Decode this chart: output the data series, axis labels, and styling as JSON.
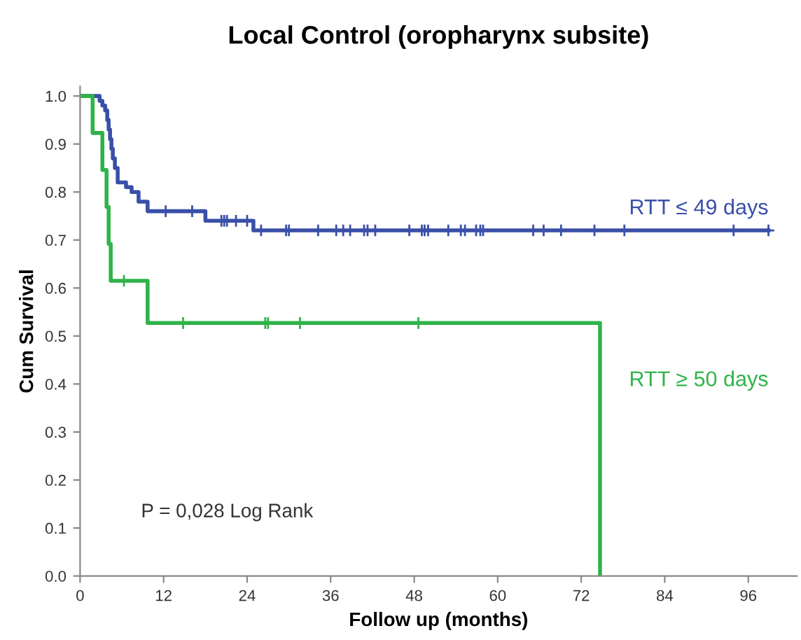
{
  "chart_data": {
    "type": "step",
    "title": "Local Control (oropharynx subsite)",
    "xlabel": "Follow up (months)",
    "ylabel": "Cum Survival",
    "xlim": [
      0,
      103
    ],
    "ylim": [
      0,
      1.02
    ],
    "xticks": [
      0,
      12,
      24,
      36,
      48,
      60,
      72,
      84,
      96
    ],
    "yticks": [
      {
        "value": 0,
        "label": "0.0"
      },
      0.1,
      0.2,
      0.3,
      0.4,
      0.5,
      0.6,
      0.7,
      0.8,
      0.9,
      {
        "value": 1,
        "label": "1.0"
      }
    ],
    "grid": false,
    "legend": false,
    "line_style": "solid",
    "annotations": [
      "P = 0,028 Log Rank"
    ],
    "series": [
      {
        "name": "RTT ≤ 49 days",
        "color": "#3a4fa8",
        "x": [
          0,
          2.8,
          3.2,
          3.6,
          3.9,
          4.1,
          4.3,
          4.5,
          4.7,
          5.0,
          5.4,
          6.6,
          7.4,
          8.4,
          9.7,
          18.0,
          24.9,
          98.9
        ],
        "values": [
          1.0,
          0.99,
          0.98,
          0.97,
          0.95,
          0.93,
          0.91,
          0.89,
          0.87,
          0.85,
          0.82,
          0.81,
          0.8,
          0.78,
          0.76,
          0.74,
          0.72,
          0.72
        ]
      },
      {
        "name": "RTT ≥ 50 days",
        "color": "#2fb34a",
        "x": [
          0,
          1.8,
          3.2,
          3.8,
          4.1,
          4.4,
          9.7,
          74.7
        ],
        "values": [
          1.0,
          0.923,
          0.846,
          0.769,
          0.692,
          0.615,
          0.527,
          0.0
        ]
      },
      {
        "type": "scatter",
        "marker": "cross",
        "color": "#3a4fa8",
        "x": [
          12.3,
          16.1,
          20.3,
          20.7,
          21.1,
          22.4,
          24,
          26,
          29.6,
          30,
          34.2,
          36.8,
          37.8,
          38.8,
          40.8,
          41.3,
          42.4,
          47.3,
          49.1,
          49.5,
          50,
          52.9,
          54.7,
          55.3,
          56.9,
          57.5,
          57.9,
          65.1,
          66.6,
          69.1,
          73.9,
          78.2,
          93.9,
          98.9
        ],
        "values": [
          0.76,
          0.76,
          0.74,
          0.74,
          0.74,
          0.74,
          0.74,
          0.72,
          0.72,
          0.72,
          0.72,
          0.72,
          0.72,
          0.72,
          0.72,
          0.72,
          0.72,
          0.72,
          0.72,
          0.72,
          0.72,
          0.72,
          0.72,
          0.72,
          0.72,
          0.72,
          0.72,
          0.72,
          0.72,
          0.72,
          0.72,
          0.72,
          0.72,
          0.72
        ]
      },
      {
        "type": "scatter",
        "marker": "cross",
        "color": "#2fb34a",
        "x": [
          6.3,
          14.8,
          26.6,
          27.0,
          31.6,
          48.6
        ],
        "values": [
          0.615,
          0.527,
          0.527,
          0.527,
          0.527,
          0.527
        ]
      }
    ]
  }
}
